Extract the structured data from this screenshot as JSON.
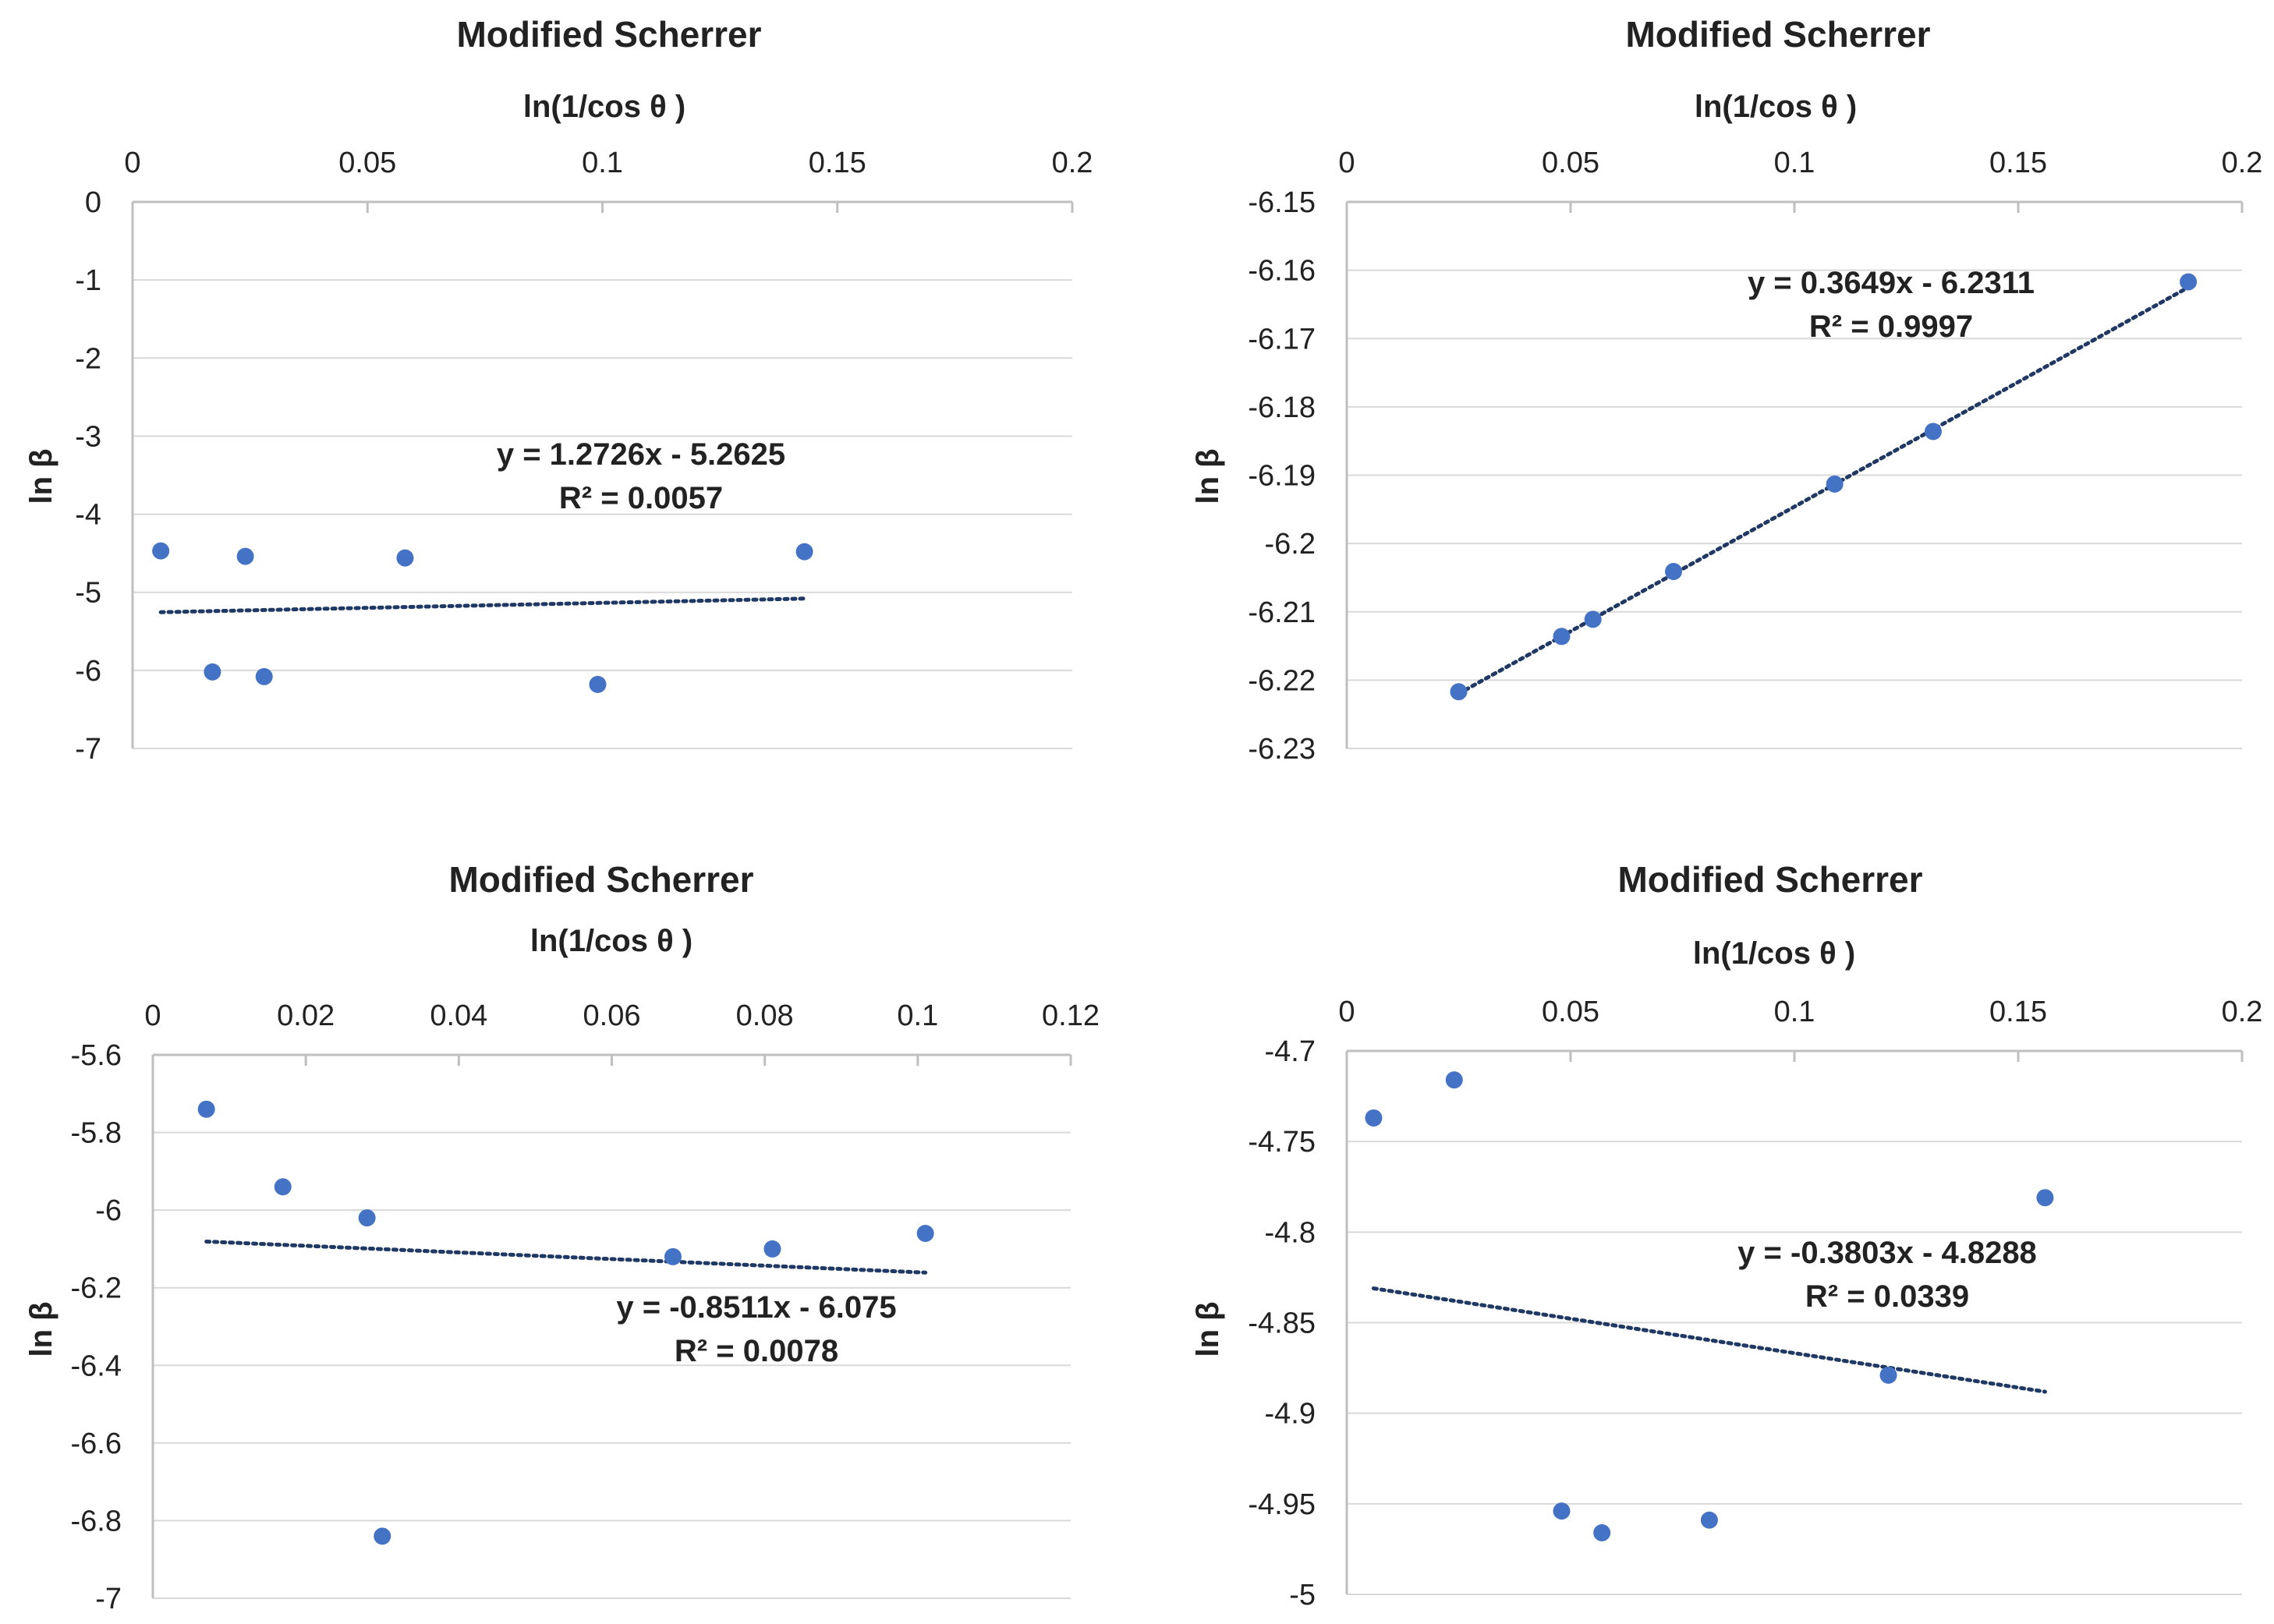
{
  "colors": {
    "marker": "#4472C4",
    "trendline": "#1F3864",
    "grid": "#D9D9D9",
    "axis": "#BFBFBF"
  },
  "chart_data": [
    {
      "type": "scatter",
      "title": "Modified Scherrer",
      "xlabel": "ln(1/cos θ )",
      "ylabel": "ln β",
      "x_axis_position": "top",
      "grid": "horizontal",
      "xlim": [
        0,
        0.2
      ],
      "ylim": [
        -7,
        0
      ],
      "xticks": [
        0,
        0.05,
        0.1,
        0.15,
        0.2
      ],
      "xtick_labels": [
        "0",
        "0.05",
        "0.1",
        "0.15",
        "0.2"
      ],
      "yticks": [
        0,
        -1,
        -2,
        -3,
        -4,
        -5,
        -6,
        -7
      ],
      "ytick_labels": [
        "0",
        "-1",
        "-2",
        "-3",
        "-4",
        "-5",
        "-6",
        "-7"
      ],
      "points": [
        {
          "x": 0.006,
          "y": -4.47
        },
        {
          "x": 0.017,
          "y": -6.02
        },
        {
          "x": 0.024,
          "y": -4.54
        },
        {
          "x": 0.028,
          "y": -6.08
        },
        {
          "x": 0.058,
          "y": -4.56
        },
        {
          "x": 0.099,
          "y": -6.18
        },
        {
          "x": 0.143,
          "y": -4.48
        }
      ],
      "trendline": {
        "slope": 1.2726,
        "intercept": -5.2625,
        "x_range": [
          0.006,
          0.143
        ]
      },
      "equation": "y = 1.2726x - 5.2625",
      "r_squared": "R² = 0.0057"
    },
    {
      "type": "scatter",
      "title": "Modified Scherrer",
      "xlabel": "ln(1/cos θ )",
      "ylabel": "ln β",
      "x_axis_position": "top",
      "grid": "horizontal",
      "xlim": [
        0,
        0.2
      ],
      "ylim": [
        -6.23,
        -6.15
      ],
      "xticks": [
        0,
        0.05,
        0.1,
        0.15,
        0.2
      ],
      "xtick_labels": [
        "0",
        "0.05",
        "0.1",
        "0.15",
        "0.2"
      ],
      "yticks": [
        -6.15,
        -6.16,
        -6.17,
        -6.18,
        -6.19,
        -6.2,
        -6.21,
        -6.22,
        -6.23
      ],
      "ytick_labels": [
        "-6.15",
        "-6.16",
        "-6.17",
        "-6.18",
        "-6.19",
        "-6.2",
        "-6.21",
        "-6.22",
        "-6.23"
      ],
      "points": [
        {
          "x": 0.025,
          "y": -6.2217
        },
        {
          "x": 0.048,
          "y": -6.2136
        },
        {
          "x": 0.055,
          "y": -6.2111
        },
        {
          "x": 0.073,
          "y": -6.2041
        },
        {
          "x": 0.109,
          "y": -6.1913
        },
        {
          "x": 0.131,
          "y": -6.1836
        },
        {
          "x": 0.188,
          "y": -6.1617
        }
      ],
      "trendline": {
        "slope": 0.3649,
        "intercept": -6.2311,
        "x_range": [
          0.025,
          0.188
        ]
      },
      "equation": "y = 0.3649x - 6.2311",
      "r_squared": "R² = 0.9997"
    },
    {
      "type": "scatter",
      "title": "Modified Scherrer",
      "xlabel": "ln(1/cos θ )",
      "ylabel": "ln β",
      "x_axis_position": "top",
      "grid": "horizontal",
      "xlim": [
        0,
        0.12
      ],
      "ylim": [
        -7,
        -5.6
      ],
      "xticks": [
        0,
        0.02,
        0.04,
        0.06,
        0.08,
        0.1,
        0.12
      ],
      "xtick_labels": [
        "0",
        "0.02",
        "0.04",
        "0.06",
        "0.08",
        "0.1",
        "0.12"
      ],
      "yticks": [
        -5.6,
        -5.8,
        -6,
        -6.2,
        -6.4,
        -6.6,
        -6.8,
        -7
      ],
      "ytick_labels": [
        "-5.6",
        "-5.8",
        "-6",
        "-6.2",
        "-6.4",
        "-6.6",
        "-6.8",
        "-7"
      ],
      "points": [
        {
          "x": 0.007,
          "y": -5.74
        },
        {
          "x": 0.017,
          "y": -5.94
        },
        {
          "x": 0.028,
          "y": -6.02
        },
        {
          "x": 0.03,
          "y": -6.84
        },
        {
          "x": 0.068,
          "y": -6.12
        },
        {
          "x": 0.081,
          "y": -6.1
        },
        {
          "x": 0.101,
          "y": -6.06
        }
      ],
      "trendline": {
        "slope": -0.8511,
        "intercept": -6.075,
        "x_range": [
          0.007,
          0.101
        ]
      },
      "equation": "y = -0.8511x - 6.075",
      "r_squared": "R² = 0.0078"
    },
    {
      "type": "scatter",
      "title": "Modified Scherrer",
      "xlabel": "ln(1/cos θ )",
      "ylabel": "ln β",
      "x_axis_position": "top",
      "grid": "horizontal",
      "xlim": [
        0,
        0.2
      ],
      "ylim": [
        -5,
        -4.7
      ],
      "xticks": [
        0,
        0.05,
        0.1,
        0.15,
        0.2
      ],
      "xtick_labels": [
        "0",
        "0.05",
        "0.1",
        "0.15",
        "0.2"
      ],
      "yticks": [
        -4.7,
        -4.75,
        -4.8,
        -4.85,
        -4.9,
        -4.95,
        -5
      ],
      "ytick_labels": [
        "-4.7",
        "-4.75",
        "-4.8",
        "-4.85",
        "-4.9",
        "-4.95",
        "-5"
      ],
      "points": [
        {
          "x": 0.006,
          "y": -4.737
        },
        {
          "x": 0.024,
          "y": -4.716
        },
        {
          "x": 0.048,
          "y": -4.954
        },
        {
          "x": 0.057,
          "y": -4.966
        },
        {
          "x": 0.081,
          "y": -4.959
        },
        {
          "x": 0.121,
          "y": -4.879
        },
        {
          "x": 0.156,
          "y": -4.781
        }
      ],
      "trendline": {
        "slope": -0.3803,
        "intercept": -4.8288,
        "x_range": [
          0.006,
          0.156
        ]
      },
      "equation": "y = -0.3803x - 4.8288",
      "r_squared": "R² = 0.0339"
    }
  ]
}
